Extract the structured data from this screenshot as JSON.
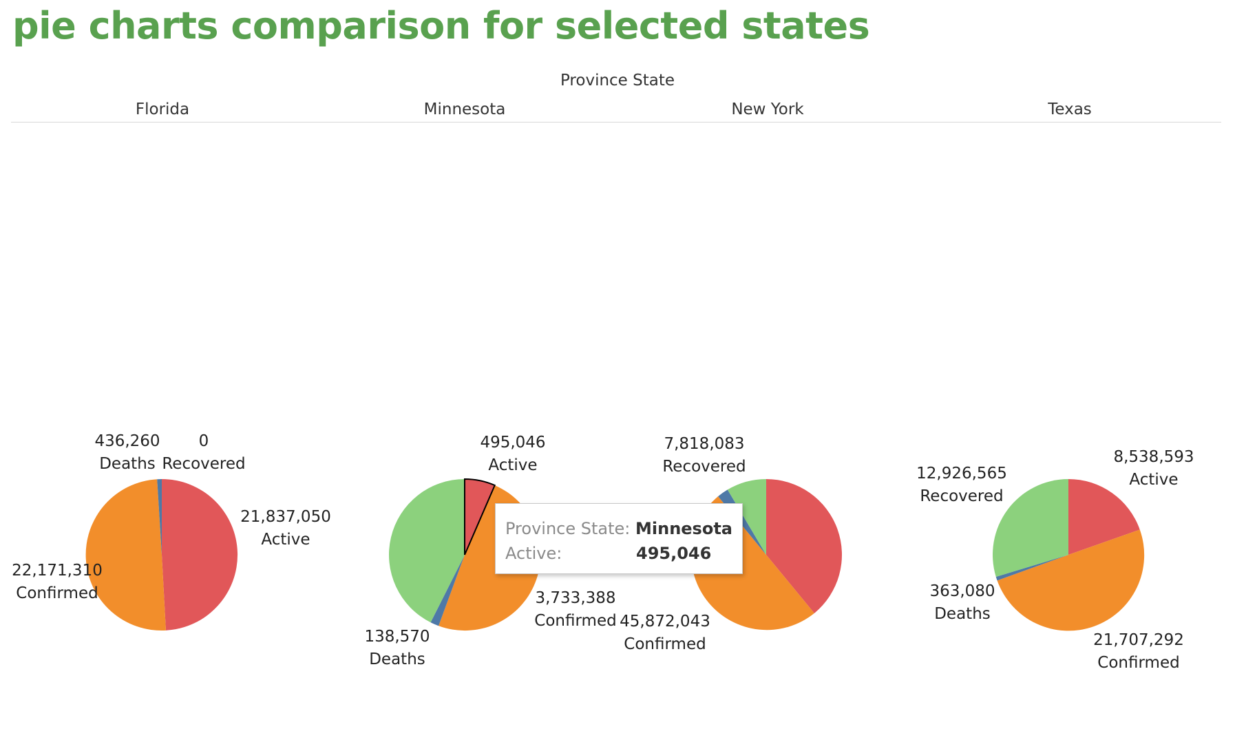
{
  "title": "pie charts comparison for selected states",
  "header_title": "Province State",
  "colors": {
    "Active": "#e15759",
    "Confirmed": "#f28e2b",
    "Deaths": "#4e79a7",
    "Recovered": "#8cd17d"
  },
  "chart_data": [
    {
      "type": "pie",
      "state": "Florida",
      "slices": [
        {
          "label": "Active",
          "value": 21837050,
          "display": "21,837,050"
        },
        {
          "label": "Confirmed",
          "value": 22171310,
          "display": "22,171,310"
        },
        {
          "label": "Deaths",
          "value": 436260,
          "display": "436,260"
        },
        {
          "label": "Recovered",
          "value": 0,
          "display": "0"
        }
      ]
    },
    {
      "type": "pie",
      "state": "Minnesota",
      "slices": [
        {
          "label": "Active",
          "value": 495046,
          "display": "495,046"
        },
        {
          "label": "Confirmed",
          "value": 3733388,
          "display": "3,733,388"
        },
        {
          "label": "Deaths",
          "value": 138570,
          "display": "138,570"
        },
        {
          "label": "Recovered",
          "value": 3237772,
          "display": ""
        }
      ]
    },
    {
      "type": "pie",
      "state": "New York",
      "slices": [
        {
          "label": "Active",
          "value": 35813250,
          "display": ""
        },
        {
          "label": "Confirmed",
          "value": 45872043,
          "display": "45,872,043"
        },
        {
          "label": "Deaths",
          "value": 2240710,
          "display": ""
        },
        {
          "label": "Recovered",
          "value": 7818083,
          "display": "7,818,083"
        }
      ]
    },
    {
      "type": "pie",
      "state": "Texas",
      "slices": [
        {
          "label": "Active",
          "value": 8538593,
          "display": "8,538,593"
        },
        {
          "label": "Confirmed",
          "value": 21707292,
          "display": "21,707,292"
        },
        {
          "label": "Deaths",
          "value": 363080,
          "display": "363,080"
        },
        {
          "label": "Recovered",
          "value": 12926565,
          "display": "12,926,565"
        }
      ]
    }
  ],
  "tooltip": {
    "state_key": "Province State:",
    "state_value": "Minnesota",
    "measure_key": "Active:",
    "measure_value": "495,046"
  }
}
